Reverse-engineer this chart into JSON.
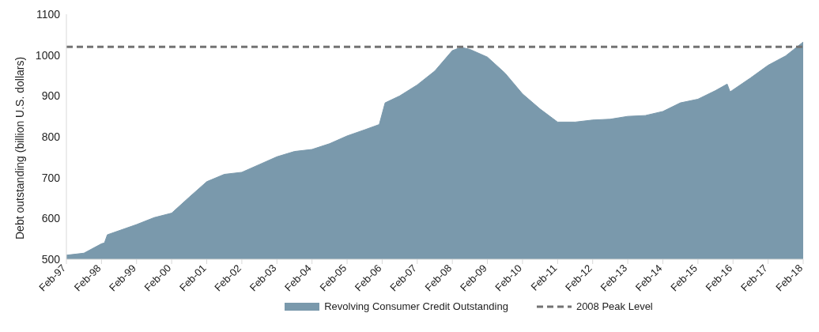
{
  "chart_data": {
    "type": "area",
    "ylabel": "Debt outstanding (billion U.S. dollars)",
    "x": [
      "1997-02",
      "1997-08",
      "1998-02",
      "1998-03",
      "1998-04",
      "1999-02",
      "1999-08",
      "2000-02",
      "2000-08",
      "2001-02",
      "2001-08",
      "2002-02",
      "2002-08",
      "2003-02",
      "2003-08",
      "2004-02",
      "2004-08",
      "2005-02",
      "2005-08",
      "2006-01",
      "2006-03",
      "2006-08",
      "2007-02",
      "2007-08",
      "2008-02",
      "2008-05",
      "2008-08",
      "2009-02",
      "2009-08",
      "2010-02",
      "2010-08",
      "2011-02",
      "2011-08",
      "2012-02",
      "2012-08",
      "2013-02",
      "2013-08",
      "2014-02",
      "2014-08",
      "2015-02",
      "2015-08",
      "2015-12",
      "2016-01",
      "2016-08",
      "2017-02",
      "2017-08",
      "2018-02"
    ],
    "series": [
      {
        "name": "Revolving Consumer Credit Outstanding",
        "color": "#7a99ac",
        "values": [
          510,
          515,
          538,
          540,
          560,
          585,
          602,
          613,
          652,
          690,
          708,
          713,
          732,
          751,
          764,
          769,
          783,
          802,
          817,
          830,
          883,
          900,
          927,
          961,
          1011,
          1019,
          1014,
          995,
          956,
          905,
          868,
          836,
          836,
          841,
          843,
          850,
          852,
          862,
          883,
          892,
          913,
          929,
          910,
          944,
          975,
          998,
          1032
        ]
      }
    ],
    "xlim": [
      "1997-02",
      "2018-02"
    ],
    "xticks": [
      {
        "value": "1997-02",
        "label": "Feb-97"
      },
      {
        "value": "1998-02",
        "label": "Feb-98"
      },
      {
        "value": "1999-02",
        "label": "Feb-99"
      },
      {
        "value": "2000-02",
        "label": "Feb-00"
      },
      {
        "value": "2001-02",
        "label": "Feb-01"
      },
      {
        "value": "2002-02",
        "label": "Feb-02"
      },
      {
        "value": "2003-02",
        "label": "Feb-03"
      },
      {
        "value": "2004-02",
        "label": "Feb-04"
      },
      {
        "value": "2005-02",
        "label": "Feb-05"
      },
      {
        "value": "2006-02",
        "label": "Feb-06"
      },
      {
        "value": "2007-02",
        "label": "Feb-07"
      },
      {
        "value": "2008-02",
        "label": "Feb-08"
      },
      {
        "value": "2009-02",
        "label": "Feb-09"
      },
      {
        "value": "2010-02",
        "label": "Feb-10"
      },
      {
        "value": "2011-02",
        "label": "Feb-11"
      },
      {
        "value": "2012-02",
        "label": "Feb-12"
      },
      {
        "value": "2013-02",
        "label": "Feb-13"
      },
      {
        "value": "2014-02",
        "label": "Feb-14"
      },
      {
        "value": "2015-02",
        "label": "Feb-15"
      },
      {
        "value": "2016-02",
        "label": "Feb-16"
      },
      {
        "value": "2017-02",
        "label": "Feb-17"
      },
      {
        "value": "2018-02",
        "label": "Feb-18"
      }
    ],
    "ylim": [
      500,
      1100
    ],
    "yticks": [
      500,
      600,
      700,
      800,
      900,
      1000,
      1100
    ],
    "ref_lines": [
      {
        "axis": "y",
        "value": 1020,
        "label": "2008 Peak Level",
        "color": "#737373",
        "line_style": "dashed"
      }
    ],
    "grid": false,
    "legend": "bottom"
  }
}
